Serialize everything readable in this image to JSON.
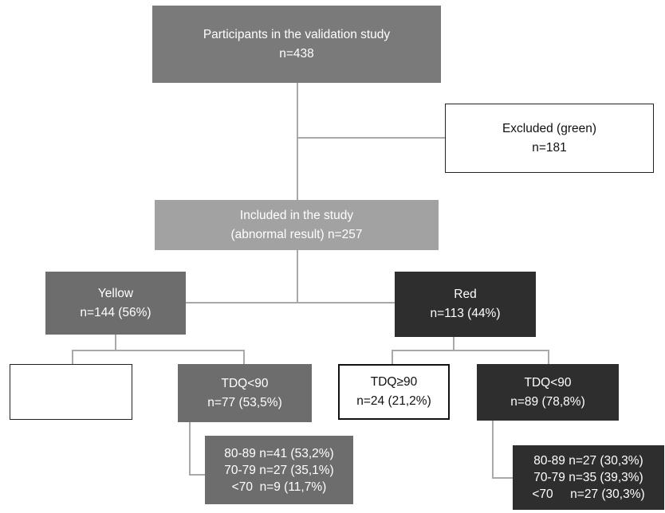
{
  "participants": {
    "line1": "Participants in the validation study",
    "line2": "n=438"
  },
  "excluded": {
    "line1": "Excluded (green)",
    "line2": "n=181"
  },
  "included": {
    "line1": "Included in the study",
    "line2": "(abnormal result) n=257"
  },
  "yellow": {
    "line1": "Yellow",
    "line2": "n=144 (56%)"
  },
  "red": {
    "line1": "Red",
    "line2": "n=113 (44%)"
  },
  "yellow_empty": {
    "line1": ""
  },
  "yellow_tdq_low": {
    "line1": "TDQ<90",
    "line2": "n=77 (53,5%)"
  },
  "red_tdq_high": {
    "line1": "TDQ≥90",
    "line2": "n=24 (21,2%)"
  },
  "red_tdq_low": {
    "line1": "TDQ<90",
    "line2": "n=89 (78,8%)"
  },
  "yellow_breakdown": {
    "rows": [
      "80-89 n=41 (53,2%)",
      "70-79 n=27 (35,1%)",
      "<70  n=9 (11,7%)"
    ]
  },
  "red_breakdown": {
    "rows": [
      "80-89 n=27 (30,3%)",
      "70-79 n=35 (39,3%)",
      "<70     n=27 (30,3%)"
    ]
  },
  "colors": {
    "dark_grey": "#7b7a7a",
    "light_grey": "#a3a2a2",
    "mid_grey": "#6e6d6d",
    "black": "#2f2e2e",
    "connector": "#a9a9a9"
  }
}
